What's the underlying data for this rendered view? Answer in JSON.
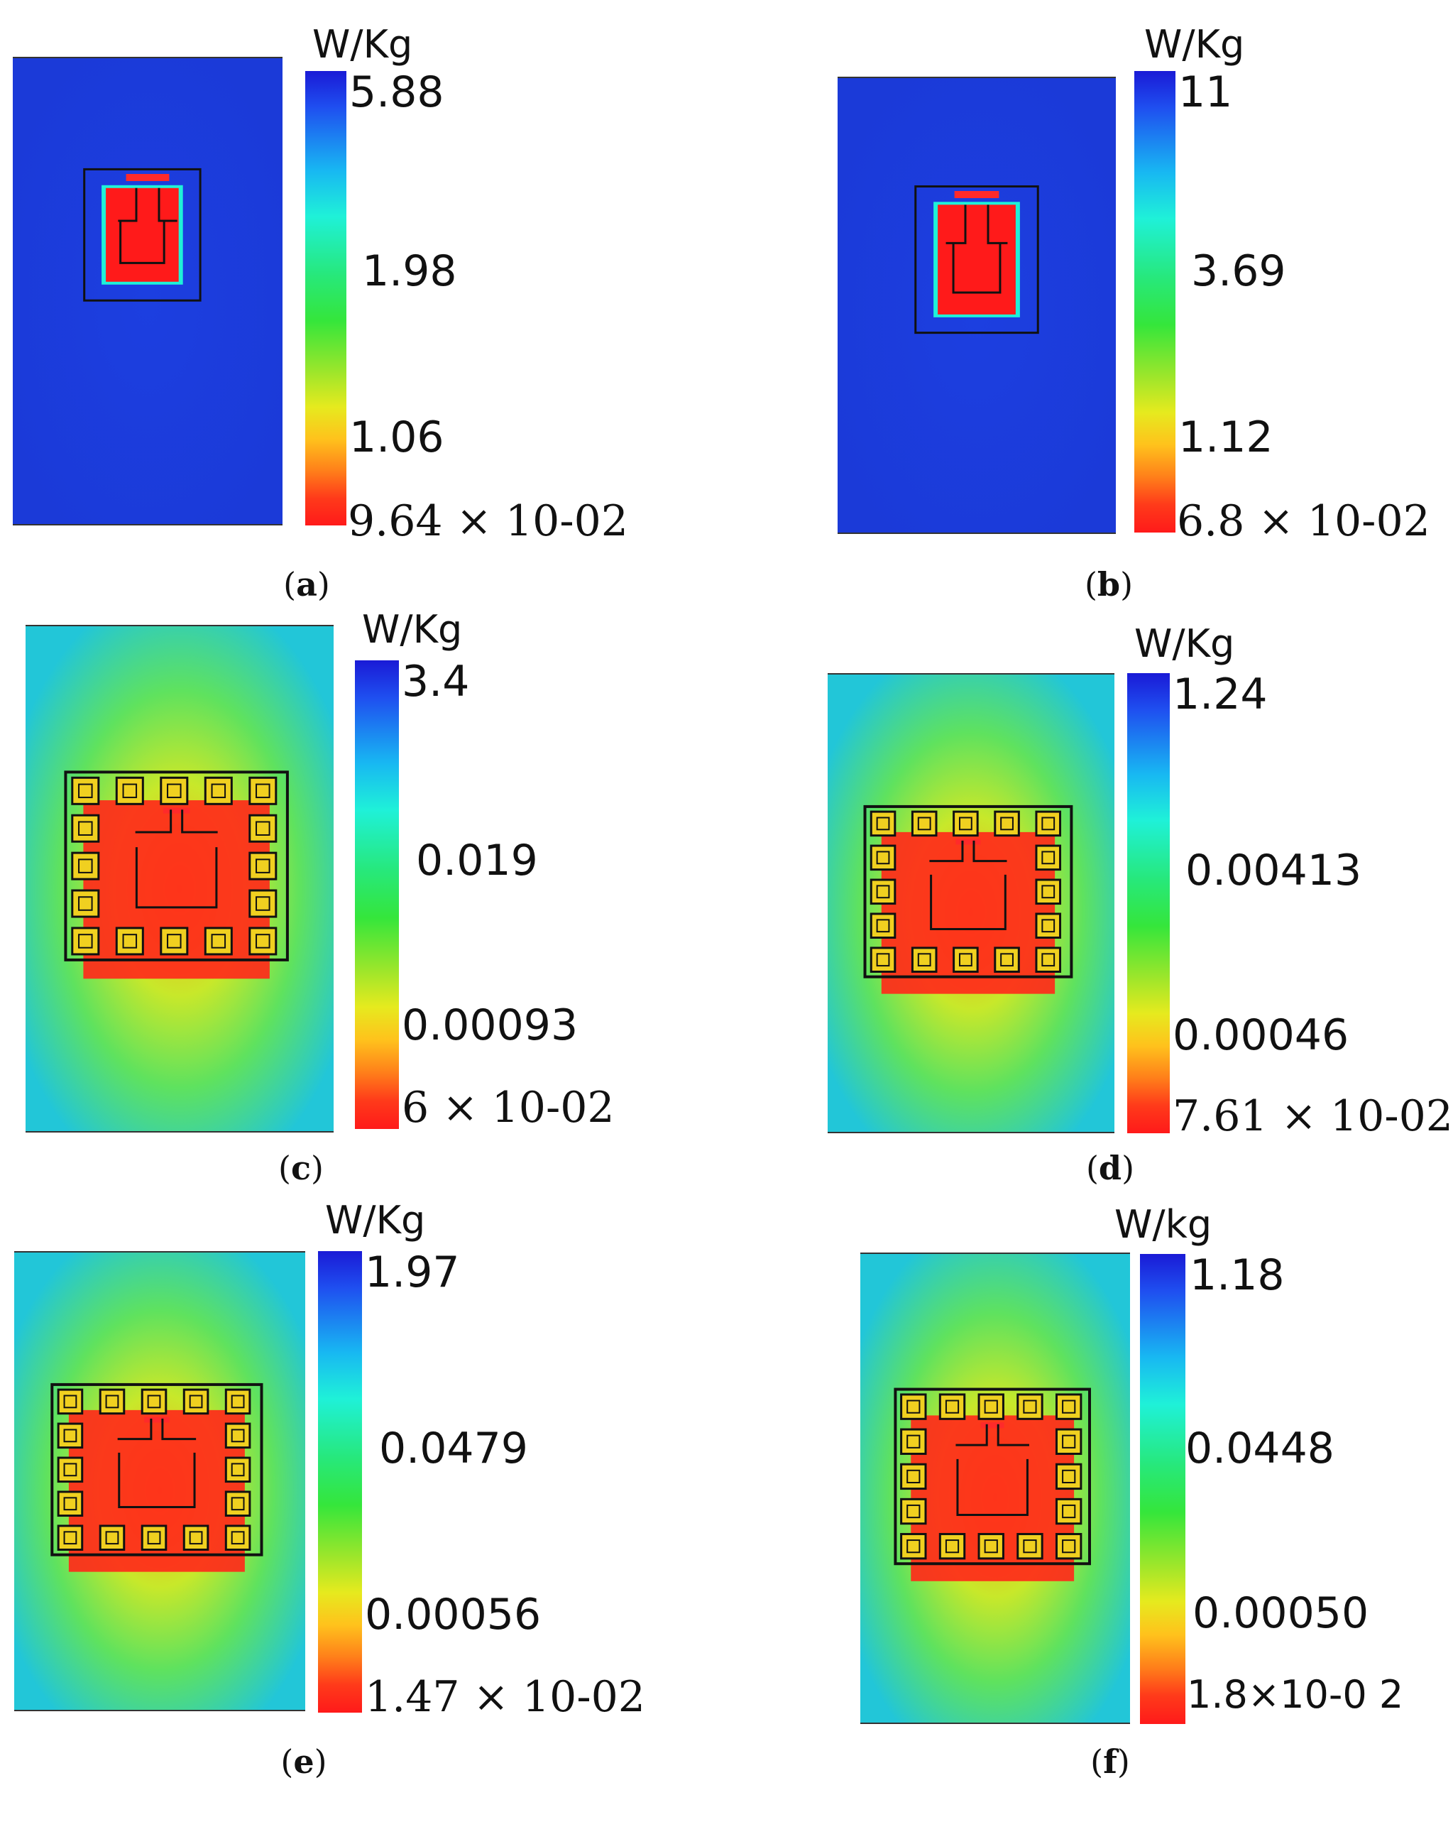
{
  "panels": [
    {
      "caption_letter": "a",
      "unit": "W/Kg",
      "ticks": [
        "5.88",
        "1.98",
        "1.06",
        "9.64 × 10-02"
      ],
      "map_style": "single",
      "background": "#1c3fe0"
    },
    {
      "caption_letter": "b",
      "unit": "W/Kg",
      "ticks": [
        "11",
        "3.69",
        "1.12",
        "6.8 × 10-02"
      ],
      "map_style": "single-large",
      "background": "#1c3fe0"
    },
    {
      "caption_letter": "c",
      "unit": "W/Kg",
      "ticks": [
        "3.4",
        "0.019",
        "0.00093",
        "6 × 10-02"
      ],
      "map_style": "array",
      "background": "#44e06a"
    },
    {
      "caption_letter": "d",
      "unit": "W/Kg",
      "ticks": [
        "1.24",
        "0.00413",
        "0.00046",
        "7.61 × 10-02"
      ],
      "map_style": "array",
      "background": "#62e255"
    },
    {
      "caption_letter": "e",
      "unit": "W/Kg",
      "ticks": [
        "1.97",
        "0.0479",
        "0.00056",
        "1.47 × 10-02"
      ],
      "map_style": "array-hooked",
      "background": "#5fe25e"
    },
    {
      "caption_letter": "f",
      "unit": "W/kg",
      "ticks": [
        "1.18",
        "0.0448",
        "0.00050",
        "1.8×10-0 2"
      ],
      "map_style": "array-hooked",
      "background": "#5fe25e"
    }
  ],
  "colors": {
    "high": "#1a1ad6",
    "mid": "#35e63b",
    "low": "#ff1a1a"
  }
}
